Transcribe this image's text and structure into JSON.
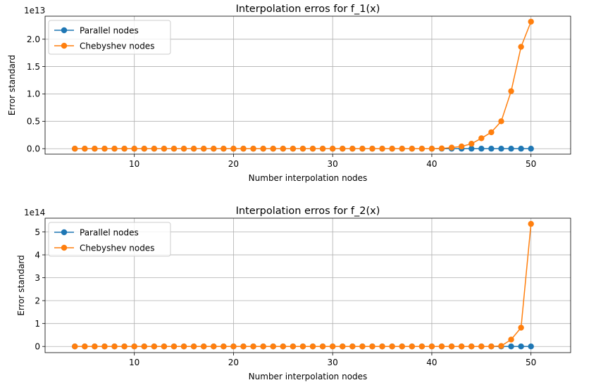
{
  "chart_data": [
    {
      "type": "line",
      "title": "Interpolation erros for f_1(x)",
      "xlabel": "Number interpolation nodes",
      "ylabel": "Error standard",
      "offset_text": "1e13",
      "scale": 10000000000000.0,
      "xlim": [
        1,
        54
      ],
      "ylim": [
        -0.1,
        2.42
      ],
      "xticks": [
        10,
        20,
        30,
        40,
        50
      ],
      "yticks": [
        0.0,
        0.5,
        1.0,
        1.5,
        2.0
      ],
      "ytick_labels": [
        "0.0",
        "0.5",
        "1.0",
        "1.5",
        "2.0"
      ],
      "grid": true,
      "legend_position": "upper left",
      "x": [
        4,
        5,
        6,
        7,
        8,
        9,
        10,
        11,
        12,
        13,
        14,
        15,
        16,
        17,
        18,
        19,
        20,
        21,
        22,
        23,
        24,
        25,
        26,
        27,
        28,
        29,
        30,
        31,
        32,
        33,
        34,
        35,
        36,
        37,
        38,
        39,
        40,
        41,
        42,
        43,
        44,
        45,
        46,
        47,
        48,
        49,
        50
      ],
      "series": [
        {
          "name": "Parallel nodes",
          "color": "#1f77b4",
          "values": [
            0,
            0,
            0,
            0,
            0,
            0,
            0,
            0,
            0,
            0,
            0,
            0,
            0,
            0,
            0,
            0,
            0,
            0,
            0,
            0,
            0,
            0,
            0,
            0,
            0,
            0,
            0,
            0,
            0,
            0,
            0,
            0,
            0,
            0,
            0,
            0,
            0,
            0,
            0,
            0,
            0,
            0,
            0,
            0,
            0,
            0,
            0
          ]
        },
        {
          "name": "Chebyshev nodes",
          "color": "#ff7f0e",
          "values": [
            0,
            0,
            0,
            0,
            0,
            0,
            0,
            0,
            0,
            0,
            0,
            0,
            0,
            0,
            0,
            0,
            0,
            0,
            0,
            0,
            0,
            0,
            0,
            0,
            0,
            0,
            0,
            0,
            0,
            0,
            0,
            0,
            0,
            0,
            0,
            0,
            0,
            0.005,
            0.02,
            0.04,
            0.09,
            0.19,
            0.3,
            0.5,
            1.05,
            1.86,
            2.32
          ]
        }
      ]
    },
    {
      "type": "line",
      "title": "Interpolation erros for f_2(x)",
      "xlabel": "Number interpolation nodes",
      "ylabel": "Error standard",
      "offset_text": "1e14",
      "scale": 100000000000000.0,
      "xlim": [
        1,
        54
      ],
      "ylim": [
        -0.27,
        5.6
      ],
      "xticks": [
        10,
        20,
        30,
        40,
        50
      ],
      "yticks": [
        0,
        1,
        2,
        3,
        4,
        5
      ],
      "ytick_labels": [
        "0",
        "1",
        "2",
        "3",
        "4",
        "5"
      ],
      "grid": true,
      "legend_position": "upper left",
      "x": [
        4,
        5,
        6,
        7,
        8,
        9,
        10,
        11,
        12,
        13,
        14,
        15,
        16,
        17,
        18,
        19,
        20,
        21,
        22,
        23,
        24,
        25,
        26,
        27,
        28,
        29,
        30,
        31,
        32,
        33,
        34,
        35,
        36,
        37,
        38,
        39,
        40,
        41,
        42,
        43,
        44,
        45,
        46,
        47,
        48,
        49,
        50
      ],
      "series": [
        {
          "name": "Parallel nodes",
          "color": "#1f77b4",
          "values": [
            0,
            0,
            0,
            0,
            0,
            0,
            0,
            0,
            0,
            0,
            0,
            0,
            0,
            0,
            0,
            0,
            0,
            0,
            0,
            0,
            0,
            0,
            0,
            0,
            0,
            0,
            0,
            0,
            0,
            0,
            0,
            0,
            0,
            0,
            0,
            0,
            0,
            0,
            0,
            0,
            0,
            0,
            0,
            0,
            0,
            0,
            0
          ]
        },
        {
          "name": "Chebyshev nodes",
          "color": "#ff7f0e",
          "values": [
            0,
            0,
            0,
            0,
            0,
            0,
            0,
            0,
            0,
            0,
            0,
            0,
            0,
            0,
            0,
            0,
            0,
            0,
            0,
            0,
            0,
            0,
            0,
            0,
            0,
            0,
            0,
            0,
            0,
            0,
            0,
            0,
            0,
            0,
            0,
            0,
            0,
            0,
            0,
            0,
            0,
            0,
            0,
            0.02,
            0.3,
            0.82,
            5.35
          ]
        }
      ]
    }
  ]
}
